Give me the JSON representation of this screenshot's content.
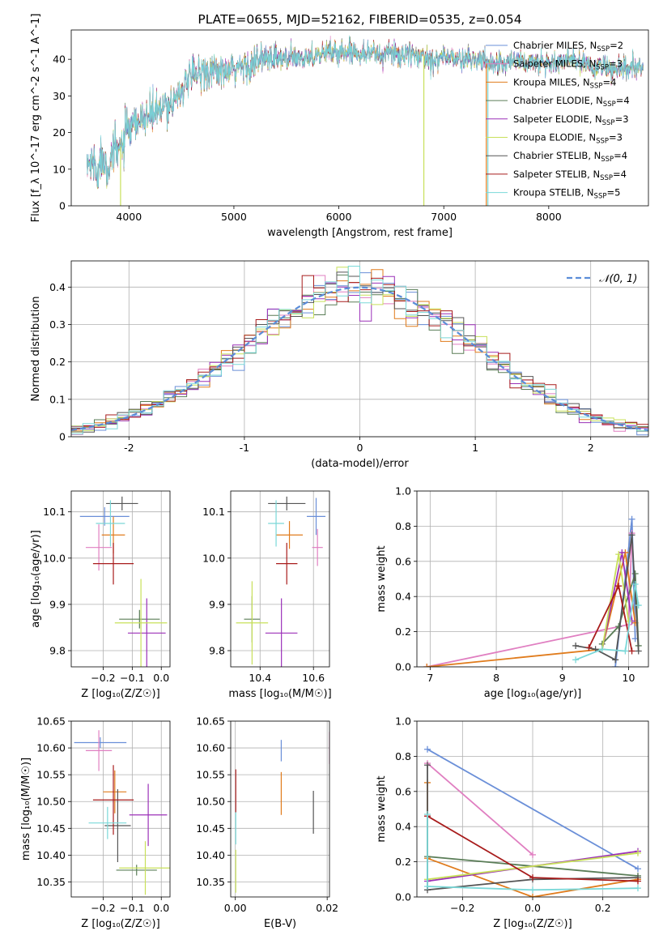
{
  "colors": {
    "Chabrier MILES": "#6a8fd8",
    "Salpeter MILES": "#e07fc1",
    "Kroupa MILES": "#e07b1c",
    "Chabrier ELODIE": "#5a7d57",
    "Salpeter ELODIE": "#9b30b8",
    "Kroupa ELODIE": "#c8e05a",
    "Chabrier STELIB": "#555555",
    "Salpeter STELIB": "#a81c1c",
    "Kroupa STELIB": "#7ad8d8",
    "normal": "#5b8dd8"
  },
  "chart_data": [
    {
      "id": "spectrum",
      "type": "line",
      "title": "PLATE=0655, MJD=52162, FIBERID=0535, z=0.054",
      "xlabel": "wavelength [Angstrom, rest frame]",
      "ylabel": "Flux [f_λ 10^-17 erg cm^-2 s^-1 A^-1]",
      "xlim": [
        3450,
        8950
      ],
      "ylim": [
        0,
        48
      ],
      "xticks": [
        4000,
        5000,
        6000,
        7000,
        8000
      ],
      "yticks": [
        0,
        10,
        20,
        30,
        40
      ],
      "grid": false,
      "legend_position": "upper right",
      "legend": [
        {
          "label": "Chabrier MILES, N",
          "sub": "SSP",
          "n": "=2"
        },
        {
          "label": "Salpeter MILES, N",
          "sub": "SSP",
          "n": "=3"
        },
        {
          "label": "Kroupa MILES, N",
          "sub": "SSP",
          "n": "=4"
        },
        {
          "label": "Chabrier ELODIE, N",
          "sub": "SSP",
          "n": "=4"
        },
        {
          "label": "Salpeter ELODIE, N",
          "sub": "SSP",
          "n": "=3"
        },
        {
          "label": "Kroupa ELODIE, N",
          "sub": "SSP",
          "n": "=3"
        },
        {
          "label": "Chabrier STELIB, N",
          "sub": "SSP",
          "n": "=4"
        },
        {
          "label": "Salpeter STELIB, N",
          "sub": "SSP",
          "n": "=4"
        },
        {
          "label": "Kroupa STELIB, N",
          "sub": "SSP",
          "n": "=5"
        }
      ],
      "continuum": {
        "x": [
          3600,
          3650,
          3700,
          3750,
          3800,
          3850,
          3900,
          3950,
          4000,
          4100,
          4200,
          4300,
          4400,
          4500,
          4600,
          4700,
          4800,
          4900,
          5000,
          5100,
          5200,
          5300,
          5400,
          5500,
          5600,
          5700,
          5800,
          5900,
          6000,
          6100,
          6200,
          6300,
          6400,
          6500,
          6600,
          6700,
          6800,
          6900,
          7000,
          7100,
          7200,
          7300,
          7400,
          7500,
          7600,
          7700,
          7800,
          7900,
          8000,
          8100,
          8200,
          8300,
          8400,
          8500,
          8600,
          8700,
          8800,
          8900
        ],
        "y": [
          11,
          12,
          10,
          13,
          12,
          14,
          15,
          18,
          20,
          23,
          25,
          26,
          28,
          32,
          35,
          37,
          37,
          36,
          37,
          38,
          39,
          40,
          40,
          40,
          40,
          41,
          41,
          42,
          42,
          42,
          42,
          42,
          41,
          42,
          41,
          41,
          41,
          40,
          41,
          40,
          40,
          40,
          39,
          39,
          39,
          40,
          39,
          39,
          39,
          39,
          40,
          39,
          38,
          38,
          37,
          37,
          38,
          37
        ]
      },
      "dips": [
        {
          "series": "Kroupa ELODIE",
          "x": 3920,
          "to": 0
        },
        {
          "series": "Kroupa ELODIE",
          "x": 6810,
          "to": 0
        },
        {
          "series": "Kroupa MILES",
          "x": 7405,
          "to": 0
        },
        {
          "series": "Kroupa STELIB",
          "x": 7420,
          "to": 0
        }
      ]
    },
    {
      "id": "residuals",
      "type": "histogram",
      "xlabel": "(data-model)/error",
      "ylabel": "Normed distribution",
      "xlim": [
        -2.5,
        2.5
      ],
      "ylim": [
        0,
        0.47
      ],
      "xticks": [
        -2,
        -1,
        0,
        1,
        2
      ],
      "yticks": [
        0.0,
        0.1,
        0.2,
        0.3,
        0.4
      ],
      "grid": true,
      "legend_position": "upper right",
      "legend": [
        {
          "label": "𝒩(0, 1)",
          "style": "dashed"
        }
      ],
      "bin_width": 0.1,
      "x_start": -2.5
    },
    {
      "id": "age_vs_Z",
      "type": "errorbar",
      "xlabel": "Z [log₁₀(Z/Z☉)]",
      "ylabel": "age  [log₁₀(age/yr)]",
      "xlim": [
        -0.31,
        0.03
      ],
      "ylim": [
        9.765,
        10.145
      ],
      "xticks": [
        -0.2,
        -0.1,
        0.0
      ],
      "xtick_labels": [
        "−0.2",
        "−0.1",
        "0.0"
      ],
      "yticks": [
        9.8,
        9.9,
        10.0,
        10.1
      ],
      "ytick_labels": [
        "9.8",
        "9.9",
        "10.0",
        "10.1"
      ],
      "grid": true,
      "points": [
        {
          "series": "Chabrier MILES",
          "x": -0.195,
          "y": 10.09,
          "xerr": 0.085,
          "yerr": 0.02
        },
        {
          "series": "Salpeter MILES",
          "x": -0.215,
          "y": 10.023,
          "xerr": 0.045,
          "yerr": 0.05
        },
        {
          "series": "Kroupa MILES",
          "x": -0.165,
          "y": 10.05,
          "xerr": 0.04,
          "yerr": 0.04
        },
        {
          "series": "Chabrier ELODIE",
          "x": -0.075,
          "y": 9.868,
          "xerr": 0.07,
          "yerr": 0.02
        },
        {
          "series": "Salpeter ELODIE",
          "x": -0.05,
          "y": 9.838,
          "xerr": 0.065,
          "yerr": 0.075
        },
        {
          "series": "Kroupa ELODIE",
          "x": -0.07,
          "y": 9.86,
          "xerr": 0.09,
          "yerr": 0.095
        },
        {
          "series": "Chabrier STELIB",
          "x": -0.135,
          "y": 10.118,
          "xerr": 0.055,
          "yerr": 0.015
        },
        {
          "series": "Salpeter STELIB",
          "x": -0.165,
          "y": 9.988,
          "xerr": 0.07,
          "yerr": 0.045
        },
        {
          "series": "Kroupa STELIB",
          "x": -0.175,
          "y": 10.075,
          "xerr": 0.05,
          "yerr": 0.05
        }
      ]
    },
    {
      "id": "age_vs_mass",
      "type": "errorbar",
      "xlabel": "mass [log₁₀(M/M☉)]",
      "ylabel": "",
      "xlim": [
        10.29,
        10.66
      ],
      "ylim": [
        9.765,
        10.145
      ],
      "xticks": [
        10.4,
        10.6
      ],
      "xtick_labels": [
        "10.4",
        "10.6"
      ],
      "yticks": [
        9.8,
        9.9,
        10.0,
        10.1
      ],
      "ytick_labels": [
        "9.8",
        "9.9",
        "10.0",
        "10.1"
      ],
      "grid": true,
      "points": [
        {
          "series": "Chabrier MILES",
          "x": 10.61,
          "y": 10.09,
          "xerr": 0.035,
          "yerr": 0.04
        },
        {
          "series": "Salpeter MILES",
          "x": 10.615,
          "y": 10.023,
          "xerr": 0.02,
          "yerr": 0.04
        },
        {
          "series": "Kroupa MILES",
          "x": 10.51,
          "y": 10.05,
          "xerr": 0.05,
          "yerr": 0.03
        },
        {
          "series": "Chabrier ELODIE",
          "x": 10.37,
          "y": 9.868,
          "xerr": 0.03,
          "yerr": 0.05
        },
        {
          "series": "Salpeter ELODIE",
          "x": 10.48,
          "y": 9.838,
          "xerr": 0.06,
          "yerr": 0.075
        },
        {
          "series": "Kroupa ELODIE",
          "x": 10.37,
          "y": 9.86,
          "xerr": 0.06,
          "yerr": 0.09
        },
        {
          "series": "Chabrier STELIB",
          "x": 10.5,
          "y": 10.118,
          "xerr": 0.07,
          "yerr": 0.015
        },
        {
          "series": "Salpeter STELIB",
          "x": 10.5,
          "y": 9.988,
          "xerr": 0.04,
          "yerr": 0.045
        },
        {
          "series": "Kroupa STELIB",
          "x": 10.46,
          "y": 10.075,
          "xerr": 0.03,
          "yerr": 0.05
        }
      ]
    },
    {
      "id": "mass_weight_vs_age",
      "type": "line",
      "xlabel": "age  [log₁₀(age/yr)]",
      "ylabel": "mass weight",
      "xlim": [
        6.8,
        10.3
      ],
      "ylim": [
        0,
        1.0
      ],
      "xticks": [
        7,
        8,
        9,
        10
      ],
      "yticks": [
        0,
        0.2,
        0.4,
        0.6,
        0.8,
        1.0
      ],
      "ytick_labels": [
        "0.0",
        "0.2",
        "0.4",
        "0.6",
        "0.8",
        "1.0"
      ],
      "grid": true,
      "series": [
        {
          "name": "Chabrier MILES",
          "x": [
            9.8,
            10.05,
            10.1
          ],
          "y": [
            0.0,
            0.84,
            0.16
          ]
        },
        {
          "name": "Salpeter MILES",
          "x": [
            6.95,
            10.0,
            10.05
          ],
          "y": [
            0.0,
            0.24,
            0.76
          ]
        },
        {
          "name": "Kroupa MILES",
          "x": [
            6.95,
            9.6,
            9.95,
            10.1
          ],
          "y": [
            0.0,
            0.1,
            0.65,
            0.25
          ]
        },
        {
          "name": "Chabrier ELODIE",
          "x": [
            9.6,
            9.85,
            10.1,
            10.15
          ],
          "y": [
            0.13,
            0.23,
            0.53,
            0.12
          ]
        },
        {
          "name": "Salpeter ELODIE",
          "x": [
            9.6,
            9.9,
            10.05
          ],
          "y": [
            0.1,
            0.65,
            0.26
          ]
        },
        {
          "name": "Kroupa ELODIE",
          "x": [
            9.6,
            9.85,
            10.0
          ],
          "y": [
            0.1,
            0.64,
            0.26
          ]
        },
        {
          "name": "Chabrier STELIB",
          "x": [
            9.2,
            9.5,
            9.8,
            10.05,
            10.15
          ],
          "y": [
            0.12,
            0.1,
            0.04,
            0.75,
            0.09
          ]
        },
        {
          "name": "Salpeter STELIB",
          "x": [
            9.4,
            9.85,
            10.05
          ],
          "y": [
            0.11,
            0.46,
            0.09
          ]
        },
        {
          "name": "Kroupa STELIB",
          "x": [
            9.2,
            9.6,
            9.95,
            10.1,
            10.15
          ],
          "y": [
            0.04,
            0.1,
            0.09,
            0.47,
            0.35
          ]
        }
      ]
    },
    {
      "id": "mass_vs_Z",
      "type": "errorbar",
      "xlabel": "Z [log₁₀(Z/Z☉)]",
      "ylabel": "mass [log₁₀(M/M☉)]",
      "xlim": [
        -0.31,
        0.03
      ],
      "ylim": [
        10.322,
        10.65
      ],
      "xticks": [
        -0.2,
        -0.1,
        0.0
      ],
      "xtick_labels": [
        "−0.2",
        "−0.1",
        "0.0"
      ],
      "yticks": [
        10.35,
        10.4,
        10.45,
        10.5,
        10.55,
        10.6,
        10.65
      ],
      "ytick_labels": [
        "10.35",
        "10.40",
        "10.45",
        "10.50",
        "10.55",
        "10.60",
        "10.65"
      ],
      "grid": true,
      "points": [
        {
          "series": "Chabrier MILES",
          "x": -0.21,
          "y": 10.61,
          "xerr": 0.09,
          "yerr": 0.01
        },
        {
          "series": "Salpeter MILES",
          "x": -0.215,
          "y": 10.595,
          "xerr": 0.045,
          "yerr": 0.038
        },
        {
          "series": "Kroupa MILES",
          "x": -0.16,
          "y": 10.518,
          "xerr": 0.04,
          "yerr": 0.04
        },
        {
          "series": "Chabrier ELODIE",
          "x": -0.085,
          "y": 10.372,
          "xerr": 0.07,
          "yerr": 0.01
        },
        {
          "series": "Salpeter ELODIE",
          "x": -0.045,
          "y": 10.475,
          "xerr": 0.065,
          "yerr": 0.058
        },
        {
          "series": "Kroupa ELODIE",
          "x": -0.055,
          "y": 10.376,
          "xerr": 0.09,
          "yerr": 0.05
        },
        {
          "series": "Chabrier STELIB",
          "x": -0.15,
          "y": 10.455,
          "xerr": 0.045,
          "yerr": 0.068
        },
        {
          "series": "Salpeter STELIB",
          "x": -0.165,
          "y": 10.503,
          "xerr": 0.07,
          "yerr": 0.065
        },
        {
          "series": "Kroupa STELIB",
          "x": -0.185,
          "y": 10.46,
          "xerr": 0.065,
          "yerr": 0.03
        }
      ]
    },
    {
      "id": "mass_vs_EBV",
      "type": "errorbar",
      "xlabel": "E(B-V)",
      "ylabel": "",
      "xlim": [
        -0.001,
        0.0205
      ],
      "ylim": [
        10.322,
        10.65
      ],
      "xticks": [
        0.0,
        0.02
      ],
      "xtick_labels": [
        "0.00",
        "0.02"
      ],
      "yticks": [
        10.35,
        10.4,
        10.45,
        10.5,
        10.55,
        10.6,
        10.65
      ],
      "ytick_labels": [
        "10.35",
        "10.40",
        "10.45",
        "10.50",
        "10.55",
        "10.60",
        "10.65"
      ],
      "grid": true,
      "points": [
        {
          "series": "Chabrier MILES",
          "x": 0.01,
          "y": 10.595,
          "xerr": 0.0,
          "yerr": 0.02
        },
        {
          "series": "Salpeter MILES",
          "x": 0.0205,
          "y": 10.6,
          "xerr": 0.0,
          "yerr": 0.03
        },
        {
          "series": "Kroupa MILES",
          "x": 0.01,
          "y": 10.515,
          "xerr": 0.0,
          "yerr": 0.04
        },
        {
          "series": "Chabrier STELIB",
          "x": 0.017,
          "y": 10.48,
          "xerr": 0.0,
          "yerr": 0.04
        },
        {
          "series": "Salpeter STELIB",
          "x": 0.0001,
          "y": 10.52,
          "xerr": 0.0,
          "yerr": 0.04
        },
        {
          "series": "Kroupa STELIB",
          "x": 0.0001,
          "y": 10.45,
          "xerr": 0.0,
          "yerr": 0.03
        },
        {
          "series": "Kroupa ELODIE",
          "x": 0.0001,
          "y": 10.37,
          "xerr": 0.0,
          "yerr": 0.04
        }
      ]
    },
    {
      "id": "mass_weight_vs_Z",
      "type": "line",
      "xlabel": "Z [log₁₀(Z/Z☉)]",
      "ylabel": "mass weight",
      "xlim": [
        -0.33,
        0.33
      ],
      "ylim": [
        0,
        1.0
      ],
      "xticks": [
        -0.2,
        0.0,
        0.2
      ],
      "xtick_labels": [
        "−0.2",
        "0.0",
        "0.2"
      ],
      "yticks": [
        0,
        0.2,
        0.4,
        0.6,
        0.8,
        1.0
      ],
      "ytick_labels": [
        "0.0",
        "0.2",
        "0.4",
        "0.6",
        "0.8",
        "1.0"
      ],
      "grid": true,
      "series": [
        {
          "name": "Chabrier MILES",
          "x": [
            -0.3,
            0.3
          ],
          "y": [
            0.84,
            0.16
          ]
        },
        {
          "name": "Salpeter MILES",
          "x": [
            -0.3,
            0.0
          ],
          "y": [
            0.76,
            0.24
          ]
        },
        {
          "name": "Kroupa MILES",
          "x": [
            -0.3,
            -0.3,
            0.0,
            0.3
          ],
          "y": [
            0.65,
            0.22,
            0.0,
            0.1
          ]
        },
        {
          "name": "Chabrier ELODIE",
          "x": [
            -0.3,
            0.3
          ],
          "y": [
            0.23,
            0.12
          ]
        },
        {
          "name": "Salpeter ELODIE",
          "x": [
            -0.3,
            0.3
          ],
          "y": [
            0.09,
            0.26
          ]
        },
        {
          "name": "Kroupa ELODIE",
          "x": [
            -0.3,
            0.3
          ],
          "y": [
            0.1,
            0.25
          ]
        },
        {
          "name": "Chabrier STELIB",
          "x": [
            -0.3,
            -0.3,
            0.0,
            0.3
          ],
          "y": [
            0.75,
            0.04,
            0.1,
            0.11
          ]
        },
        {
          "name": "Salpeter STELIB",
          "x": [
            -0.3,
            0.0,
            0.3
          ],
          "y": [
            0.46,
            0.11,
            0.09
          ]
        },
        {
          "name": "Kroupa STELIB",
          "x": [
            -0.3,
            -0.3,
            0.0,
            0.3
          ],
          "y": [
            0.47,
            0.06,
            0.04,
            0.05
          ]
        }
      ]
    }
  ]
}
